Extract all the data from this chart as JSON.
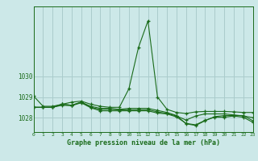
{
  "title": "Graphe pression niveau de la mer (hPa)",
  "bg_color": "#cce8e8",
  "grid_color": "#aacccc",
  "line_color": "#1a6b1a",
  "xlim": [
    0,
    23
  ],
  "ylim": [
    1027.3,
    1033.4
  ],
  "yticks": [
    1028,
    1029,
    1030
  ],
  "xtick_labels": [
    "0",
    "1",
    "2",
    "3",
    "4",
    "5",
    "6",
    "7",
    "8",
    "9",
    "10",
    "11",
    "12",
    "13",
    "14",
    "15",
    "16",
    "17",
    "18",
    "19",
    "20",
    "21",
    "22",
    "23"
  ],
  "series": [
    [
      1029.05,
      1028.55,
      1028.55,
      1028.65,
      1028.75,
      1028.8,
      1028.65,
      1028.55,
      1028.5,
      1028.5,
      1029.4,
      1031.4,
      1032.7,
      1029.0,
      1028.4,
      1028.25,
      1028.2,
      1028.28,
      1028.3,
      1028.3,
      1028.3,
      1028.28,
      1028.25,
      1028.25
    ],
    [
      1028.5,
      1028.5,
      1028.5,
      1028.65,
      1028.6,
      1028.75,
      1028.55,
      1028.45,
      1028.45,
      1028.4,
      1028.45,
      1028.45,
      1028.45,
      1028.35,
      1028.25,
      1028.1,
      1027.7,
      1027.62,
      1027.85,
      1028.05,
      1028.1,
      1028.1,
      1028.1,
      1027.85
    ],
    [
      1028.5,
      1028.5,
      1028.5,
      1028.65,
      1028.6,
      1028.75,
      1028.5,
      1028.4,
      1028.4,
      1028.38,
      1028.38,
      1028.38,
      1028.38,
      1028.28,
      1028.2,
      1028.08,
      1027.88,
      1028.08,
      1028.18,
      1028.18,
      1028.18,
      1028.13,
      1028.08,
      1028.0
    ],
    [
      1028.5,
      1028.5,
      1028.5,
      1028.6,
      1028.58,
      1028.72,
      1028.48,
      1028.33,
      1028.33,
      1028.33,
      1028.33,
      1028.33,
      1028.33,
      1028.22,
      1028.18,
      1028.03,
      1027.72,
      1027.65,
      1027.87,
      1028.02,
      1028.02,
      1028.08,
      1028.02,
      1027.77
    ]
  ]
}
